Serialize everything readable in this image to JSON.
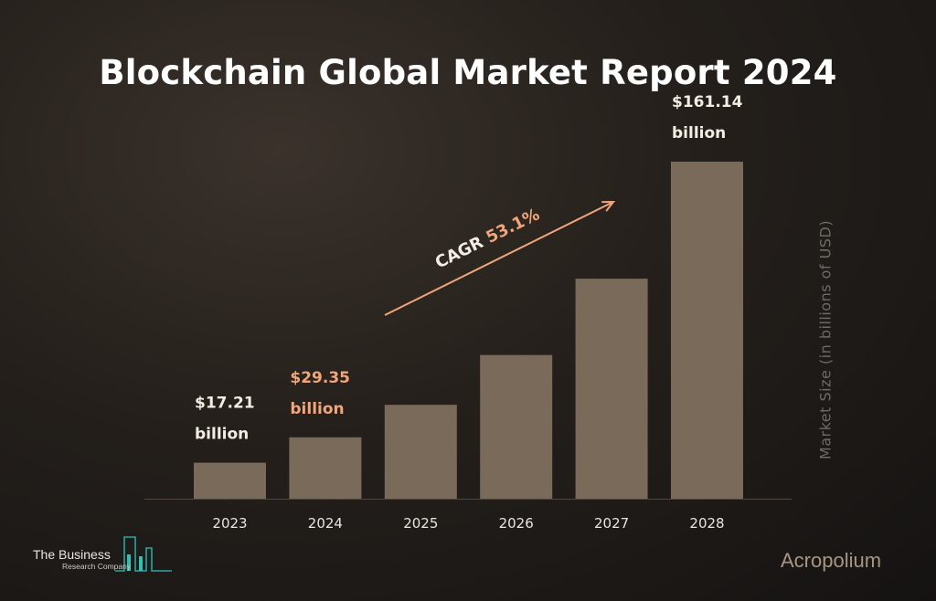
{
  "page": {
    "title": "Blockchain Global Market Report 2024"
  },
  "chart_data": {
    "type": "bar",
    "title": "Blockchain Global Market Report 2024",
    "categories": [
      "2023",
      "2024",
      "2025",
      "2026",
      "2027",
      "2028"
    ],
    "values": [
      17.21,
      29.35,
      44.9,
      68.7,
      105.2,
      161.14
    ],
    "ylabel": "Market Size (in billions of USD)",
    "xlabel": "",
    "ylim": [
      0,
      200
    ],
    "grid": false,
    "data_labels": [
      {
        "index": 0,
        "line1": "$17.21",
        "line2": "billion",
        "color": "#f3ede4"
      },
      {
        "index": 1,
        "line1": "$29.35",
        "line2": "billion",
        "color": "#f0a57a"
      },
      {
        "index": 5,
        "line1": "$161.14",
        "line2": "billion",
        "color": "#f3ede4"
      }
    ],
    "annotation": {
      "prefix": "CAGR ",
      "value": "53.1%"
    },
    "colors": {
      "bar": "#7a6a5a",
      "arrow": "#f0a57a",
      "highlight": "#f0a57a",
      "text": "#f3ede4"
    }
  },
  "branding": {
    "left_name": "The Business",
    "left_sub": "Research Company",
    "right": "Acropolium"
  }
}
